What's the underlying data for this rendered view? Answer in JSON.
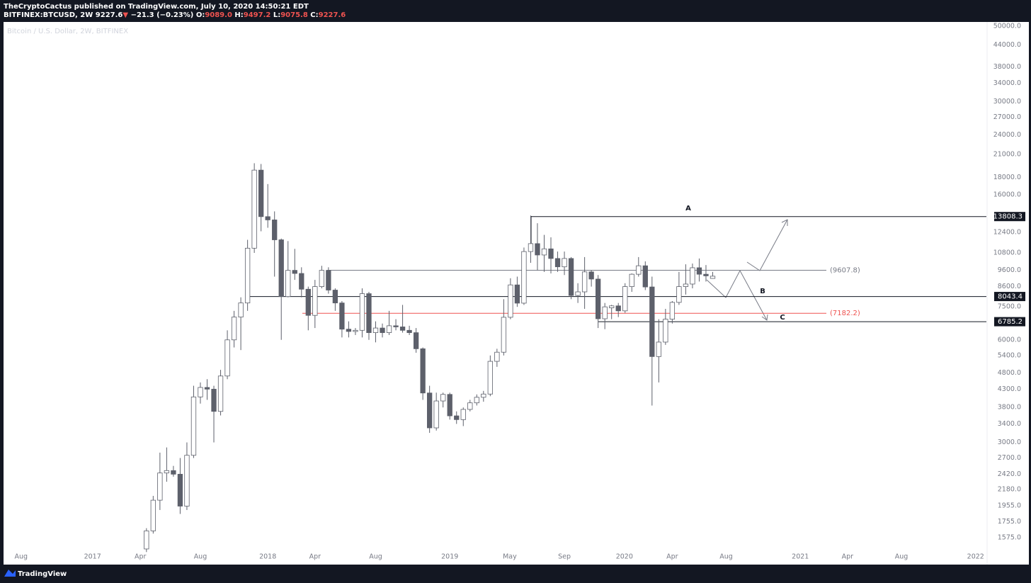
{
  "header": {
    "line1": "TheCryptoCactus published on TradingView.com, July 10, 2020 14:50:21 EDT",
    "symbol": "BITFINEX:BTCUSD, 2W",
    "last": "9227.6",
    "arrow": "▼",
    "change": "−21.3 (−0.23%)",
    "ohlc": [
      {
        "k": "O:",
        "v": "9089.0"
      },
      {
        "k": "H:",
        "v": "9497.2"
      },
      {
        "k": "L:",
        "v": "9075.8"
      },
      {
        "k": "C:",
        "v": "9227.6"
      }
    ]
  },
  "footer": {
    "brand": "TradingView"
  },
  "chart_data": {
    "type": "candlestick",
    "title": "Bitcoin / U.S. Dollar, 2W, BITFINEX",
    "log_scale": true,
    "up_color": "#ffffff",
    "down_color": "#5d606b",
    "wick_color": "#5d606b",
    "open": [
      1460,
      1650,
      2030,
      2440,
      2480,
      2420,
      1950,
      2750,
      4080,
      4350,
      4300,
      3700,
      4700,
      6000,
      7000,
      7700,
      11150,
      18900,
      13800,
      13500,
      11800,
      8040,
      9600,
      9400,
      8450,
      7080,
      8600,
      9600,
      8400,
      7700,
      6450,
      6350,
      6400,
      8200,
      6300,
      6500,
      6300,
      6600,
      6550,
      6400,
      6300,
      5650,
      4190,
      3310,
      3970,
      4150,
      3590,
      3500,
      3750,
      3920,
      4070,
      4160,
      5190,
      5520,
      6990,
      8700,
      7690,
      10900,
      11500,
      10650,
      11100,
      10400,
      9830,
      10400,
      8100,
      8300,
      9500,
      9050,
      6920,
      7450,
      7550,
      7300,
      8600,
      9350,
      9900,
      8580,
      5360,
      5910,
      6900,
      7730,
      8600,
      8750,
      9770,
      9350,
      9089
    ],
    "high": [
      1680,
      2090,
      2800,
      2900,
      2560,
      2700,
      3000,
      4400,
      4500,
      4600,
      4400,
      4900,
      6400,
      7300,
      8000,
      11800,
      19800,
      19700,
      17200,
      14300,
      11900,
      11700,
      11100,
      9800,
      8600,
      9000,
      9900,
      9800,
      8500,
      7800,
      6800,
      6500,
      8500,
      8300,
      6800,
      6700,
      7300,
      6900,
      7600,
      6600,
      6500,
      5700,
      4400,
      4200,
      4200,
      4200,
      3700,
      3800,
      4000,
      4150,
      4250,
      5400,
      5650,
      7900,
      9100,
      9200,
      11200,
      13900,
      13200,
      12200,
      12000,
      10900,
      10900,
      10500,
      8800,
      10500,
      9600,
      9300,
      7700,
      7600,
      7700,
      8800,
      9400,
      10500,
      10200,
      9200,
      6900,
      7400,
      7800,
      9500,
      10000,
      10050,
      10400,
      9950,
      9497.2
    ],
    "low": [
      1430,
      1620,
      1900,
      2300,
      2380,
      1850,
      1900,
      2700,
      3900,
      4000,
      3000,
      3600,
      4600,
      5700,
      5600,
      7300,
      10800,
      12500,
      12800,
      9200,
      6000,
      8000,
      9000,
      8000,
      6400,
      6500,
      8500,
      8200,
      7300,
      6100,
      6100,
      6200,
      6100,
      6000,
      5900,
      6100,
      6200,
      6400,
      6300,
      6200,
      5500,
      4000,
      3200,
      3250,
      3800,
      3500,
      3400,
      3350,
      3700,
      3850,
      3950,
      4100,
      5000,
      5400,
      6900,
      7500,
      7600,
      10100,
      9600,
      9500,
      9400,
      9500,
      9300,
      7900,
      7700,
      7400,
      8600,
      6500,
      6450,
      6900,
      7000,
      7200,
      8300,
      9200,
      8400,
      3850,
      4500,
      5800,
      6700,
      7600,
      8150,
      8500,
      8900,
      8900,
      9075.8
    ],
    "close": [
      1650,
      2030,
      2440,
      2480,
      2420,
      1950,
      2750,
      4080,
      4350,
      4300,
      3700,
      4700,
      6000,
      7000,
      7700,
      11150,
      18900,
      13800,
      13500,
      11800,
      8040,
      9600,
      9400,
      8450,
      7080,
      8600,
      9600,
      8400,
      7700,
      6450,
      6350,
      6400,
      8200,
      6300,
      6500,
      6300,
      6600,
      6550,
      6400,
      6300,
      5650,
      4190,
      3310,
      3970,
      4150,
      3590,
      3500,
      3750,
      3920,
      4070,
      4160,
      5190,
      5520,
      6990,
      8700,
      7690,
      10900,
      11500,
      10650,
      11100,
      10400,
      9830,
      10400,
      8100,
      8300,
      9500,
      9050,
      6920,
      7500,
      7550,
      7300,
      8600,
      9350,
      9900,
      8580,
      5360,
      5910,
      6900,
      7730,
      8600,
      8750,
      9770,
      9350,
      9248.9,
      9227.6
    ],
    "xlim": [
      -21.2,
      124.6
    ],
    "xticks": [
      {
        "value": -18.6,
        "label": "Aug"
      },
      {
        "value": -8.0,
        "label": "2017"
      },
      {
        "value": -0.9,
        "label": "Apr"
      },
      {
        "value": 8.0,
        "label": "Aug"
      },
      {
        "value": 18.0,
        "label": "2018"
      },
      {
        "value": 25.0,
        "label": "Apr"
      },
      {
        "value": 34.0,
        "label": "Aug"
      },
      {
        "value": 45.0,
        "label": "2019"
      },
      {
        "value": 53.9,
        "label": "May"
      },
      {
        "value": 62.0,
        "label": "Sep"
      },
      {
        "value": 70.9,
        "label": "2020"
      },
      {
        "value": 78.0,
        "label": "Apr"
      },
      {
        "value": 86.0,
        "label": "Aug"
      },
      {
        "value": 97.0,
        "label": "2021"
      },
      {
        "value": 104.0,
        "label": "Apr"
      },
      {
        "value": 112.0,
        "label": "Aug"
      },
      {
        "value": 123.0,
        "label": "2022"
      }
    ],
    "ylim": [
      1320,
      51450
    ],
    "yticks": [
      {
        "value": 50000,
        "label": "50000.0"
      },
      {
        "value": 44000,
        "label": "44000.0"
      },
      {
        "value": 38000,
        "label": "38000.0"
      },
      {
        "value": 34000,
        "label": "34000.0"
      },
      {
        "value": 30000,
        "label": "30000.0"
      },
      {
        "value": 27000,
        "label": "27000.0"
      },
      {
        "value": 24000,
        "label": "24000.0"
      },
      {
        "value": 21000,
        "label": "21000.0"
      },
      {
        "value": 18000,
        "label": "18000.0"
      },
      {
        "value": 16000,
        "label": "16000.0"
      },
      {
        "value": 12400,
        "label": "12400.0"
      },
      {
        "value": 10800,
        "label": "10800.0"
      },
      {
        "value": 9600,
        "label": "9600.0"
      },
      {
        "value": 8600,
        "label": "8600.0"
      },
      {
        "value": 7500,
        "label": "7500.0"
      },
      {
        "value": 6000,
        "label": "6000.0"
      },
      {
        "value": 5400,
        "label": "5400.0"
      },
      {
        "value": 4800,
        "label": "4800.0"
      },
      {
        "value": 4300,
        "label": "4300.0"
      },
      {
        "value": 3800,
        "label": "3800.0"
      },
      {
        "value": 3400,
        "label": "3400.0"
      },
      {
        "value": 3000,
        "label": "3000.0"
      },
      {
        "value": 2700,
        "label": "2700.0"
      },
      {
        "value": 2420,
        "label": "2420.0"
      },
      {
        "value": 2180,
        "label": "2180.0"
      },
      {
        "value": 1955,
        "label": "1955.0"
      },
      {
        "value": 1755,
        "label": "1755.0"
      },
      {
        "value": 1575,
        "label": "1575.0"
      }
    ],
    "price_lines": [
      {
        "value": 13808.3,
        "color": "#131722"
      },
      {
        "value": 9607.8,
        "label": "(9607.8)",
        "color": "#787b86"
      },
      {
        "value": 8043.4,
        "color": "#131722"
      },
      {
        "value": 7182.2,
        "label": "(7182.2)",
        "color": "#ef5350"
      },
      {
        "value": 6785.2,
        "color": "#131722"
      }
    ],
    "annotations": [
      "A",
      "B",
      "C"
    ]
  }
}
